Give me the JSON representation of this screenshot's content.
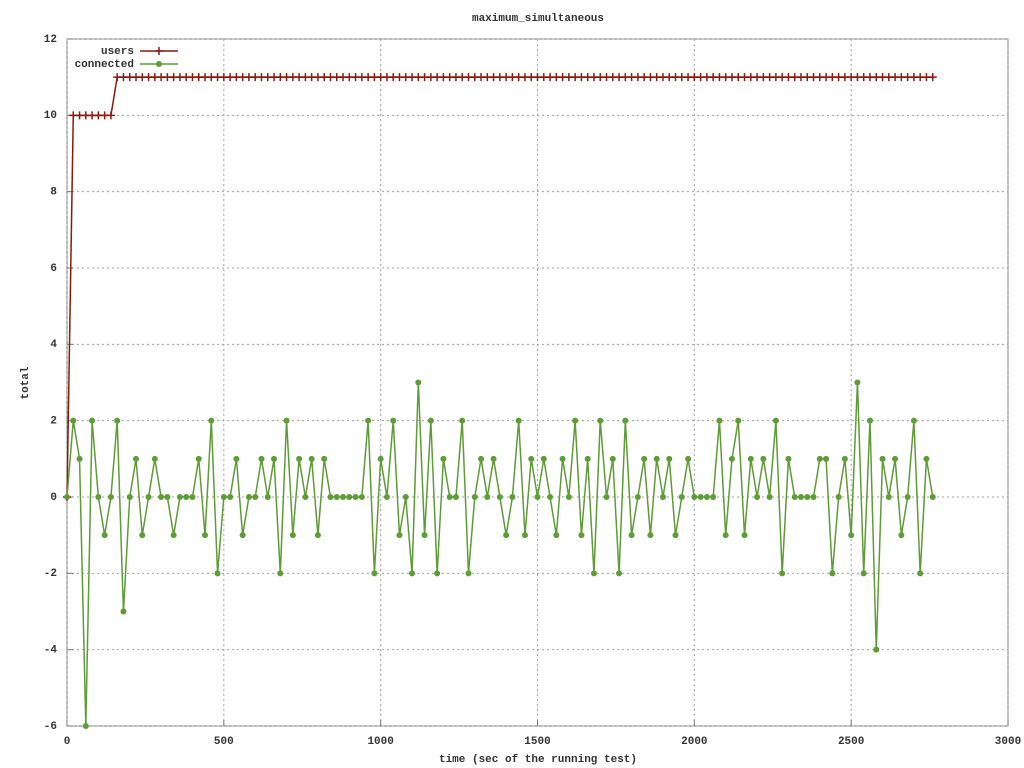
{
  "chart_data": {
    "type": "line",
    "title": "maximum_simultaneous",
    "x_label": "time (sec of the running test)",
    "y_label": "total",
    "xlim": [
      0,
      3000
    ],
    "xticks": [
      0,
      500,
      1000,
      1500,
      2000,
      2500,
      3000
    ],
    "ylim": [
      -6,
      12
    ],
    "yticks": [
      -6,
      -4,
      -2,
      0,
      2,
      4,
      6,
      8,
      10,
      12
    ],
    "grid": true,
    "legend": "top-left",
    "x": [
      0,
      20,
      40,
      60,
      80,
      100,
      120,
      140,
      160,
      180,
      200,
      220,
      240,
      260,
      280,
      300,
      320,
      340,
      360,
      380,
      400,
      420,
      440,
      460,
      480,
      500,
      520,
      540,
      560,
      580,
      600,
      620,
      640,
      660,
      680,
      700,
      720,
      740,
      760,
      780,
      800,
      820,
      840,
      860,
      880,
      900,
      920,
      940,
      960,
      980,
      1000,
      1020,
      1040,
      1060,
      1080,
      1100,
      1120,
      1140,
      1160,
      1180,
      1200,
      1220,
      1240,
      1260,
      1280,
      1300,
      1320,
      1340,
      1360,
      1380,
      1400,
      1420,
      1440,
      1460,
      1480,
      1500,
      1520,
      1540,
      1560,
      1580,
      1600,
      1620,
      1640,
      1660,
      1680,
      1700,
      1720,
      1740,
      1760,
      1780,
      1800,
      1820,
      1840,
      1860,
      1880,
      1900,
      1920,
      1940,
      1960,
      1980,
      2000,
      2020,
      2040,
      2060,
      2080,
      2100,
      2120,
      2140,
      2160,
      2180,
      2200,
      2220,
      2240,
      2260,
      2280,
      2300,
      2320,
      2340,
      2360,
      2380,
      2400,
      2420,
      2440,
      2460,
      2480,
      2500,
      2520,
      2540,
      2560,
      2580,
      2600,
      2620,
      2640,
      2660,
      2680,
      2700,
      2720,
      2740,
      2760
    ],
    "series": [
      {
        "name": "users",
        "color": "#8b1a0e",
        "marker": "plus",
        "values": [
          0,
          10,
          10,
          10,
          10,
          10,
          10,
          10,
          11,
          11,
          11,
          11,
          11,
          11,
          11,
          11,
          11,
          11,
          11,
          11,
          11,
          11,
          11,
          11,
          11,
          11,
          11,
          11,
          11,
          11,
          11,
          11,
          11,
          11,
          11,
          11,
          11,
          11,
          11,
          11,
          11,
          11,
          11,
          11,
          11,
          11,
          11,
          11,
          11,
          11,
          11,
          11,
          11,
          11,
          11,
          11,
          11,
          11,
          11,
          11,
          11,
          11,
          11,
          11,
          11,
          11,
          11,
          11,
          11,
          11,
          11,
          11,
          11,
          11,
          11,
          11,
          11,
          11,
          11,
          11,
          11,
          11,
          11,
          11,
          11,
          11,
          11,
          11,
          11,
          11,
          11,
          11,
          11,
          11,
          11,
          11,
          11,
          11,
          11,
          11,
          11,
          11,
          11,
          11,
          11,
          11,
          11,
          11,
          11,
          11,
          11,
          11,
          11,
          11,
          11,
          11,
          11,
          11,
          11,
          11,
          11,
          11,
          11,
          11,
          11,
          11,
          11,
          11,
          11,
          11,
          11,
          11,
          11,
          11,
          11,
          11,
          11,
          11,
          11
        ]
      },
      {
        "name": "connected",
        "color": "#5e9c36",
        "marker": "circle",
        "values": [
          0,
          2,
          1,
          -6,
          2,
          0,
          -1,
          0,
          2,
          -3,
          0,
          1,
          -1,
          0,
          1,
          0,
          0,
          -1,
          0,
          0,
          0,
          1,
          -1,
          2,
          -2,
          0,
          0,
          1,
          -1,
          0,
          0,
          1,
          0,
          1,
          -2,
          2,
          -1,
          1,
          0,
          1,
          -1,
          1,
          0,
          0,
          0,
          0,
          0,
          0,
          2,
          -2,
          1,
          0,
          2,
          -1,
          0,
          -2,
          3,
          -1,
          2,
          -2,
          1,
          0,
          0,
          2,
          -2,
          0,
          1,
          0,
          1,
          0,
          -1,
          0,
          2,
          -1,
          1,
          0,
          1,
          0,
          -1,
          1,
          0,
          2,
          -1,
          1,
          -2,
          2,
          0,
          1,
          -2,
          2,
          -1,
          0,
          1,
          -1,
          1,
          0,
          1,
          -1,
          0,
          1,
          0,
          0,
          0,
          0,
          2,
          -1,
          1,
          2,
          -1,
          1,
          0,
          1,
          0,
          2,
          -2,
          1,
          0,
          0,
          0,
          0,
          1,
          1,
          -2,
          0,
          1,
          -1,
          3,
          -2,
          2,
          -4,
          1,
          0,
          1,
          -1,
          0,
          2,
          -2,
          1,
          0
        ]
      }
    ]
  }
}
